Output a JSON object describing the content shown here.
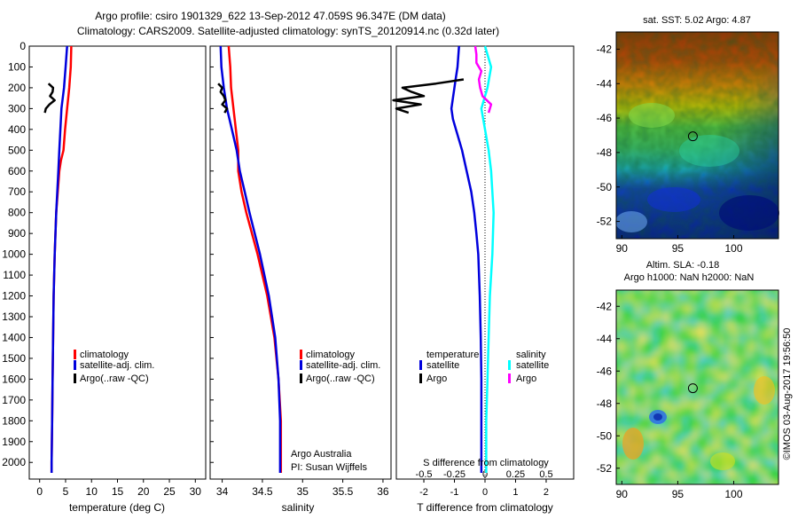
{
  "header": {
    "line1": "Argo profile: csiro 1901329_622 13-Sep-2012 47.059S 96.347E (DM data)",
    "line2": "Climatology: CARS2009. Satellite-adjusted climatology: synTS_20120914.nc (0.32d later)"
  },
  "depth_ticks": [
    "0",
    "100",
    "200",
    "300",
    "400",
    "500",
    "600",
    "700",
    "800",
    "900",
    "1000",
    "1100",
    "1200",
    "1300",
    "1400",
    "1500",
    "1600",
    "1700",
    "1800",
    "1900",
    "2000"
  ],
  "panels": {
    "temperature": {
      "xlabel": "temperature (deg C)",
      "xticks": [
        "0",
        "5",
        "10",
        "15",
        "20",
        "25",
        "30"
      ],
      "legend": [
        "climatology",
        "satellite-adj. clim.",
        "Argo(..raw -QC)"
      ]
    },
    "salinity": {
      "xlabel": "salinity",
      "xticks": [
        "34",
        "34.5",
        "35",
        "35.5",
        "36"
      ],
      "legend": [
        "climatology",
        "satellite-adj. clim.",
        "Argo(..raw -QC)"
      ],
      "note1": "Argo Australia",
      "note2": "PI: Susan Wijffels"
    },
    "difference": {
      "xlabel_top": "S difference from climatology",
      "xlabel_bottom": "T difference from climatology",
      "top_ticks": [
        "-0.5",
        "-0.25",
        "0",
        "0.25",
        "0.5"
      ],
      "bottom_ticks": [
        "-2",
        "-1",
        "0",
        "1",
        "2"
      ],
      "legend_head_t": "temperature",
      "legend_head_s": "salinity",
      "legend_t": [
        "satellite",
        "Argo"
      ],
      "legend_s": [
        "satellite",
        "Argo"
      ]
    }
  },
  "maps": {
    "sst": {
      "title": "sat. SST: 5.02 Argo: 4.87",
      "yticks": [
        "-42",
        "-44",
        "-46",
        "-48",
        "-50",
        "-52"
      ],
      "xticks": [
        "90",
        "95",
        "100"
      ]
    },
    "sla": {
      "title1": "Altim. SLA: -0.18",
      "title2": "Argo h1000: NaN h2000: NaN",
      "yticks": [
        "-42",
        "-44",
        "-46",
        "-48",
        "-50",
        "-52"
      ],
      "xticks": [
        "90",
        "95",
        "100"
      ]
    },
    "float_lon": 96.347,
    "float_lat": -47.059
  },
  "credit": "©IMOS 03-Aug-2017 19:56:50",
  "colors": {
    "climatology": "#ff0000",
    "satellite": "#0000dd",
    "argo": "#000000",
    "sat_salinity": "#00ffff",
    "argo_salinity": "#ff00ff"
  },
  "chart_data": [
    {
      "type": "line",
      "title": "",
      "xlabel": "temperature (deg C)",
      "ylabel": "",
      "xlim": [
        -2,
        32
      ],
      "ylim": [
        2080,
        0
      ],
      "series": [
        {
          "name": "climatology",
          "color": "#ff0000",
          "depth": [
            0,
            100,
            200,
            300,
            400,
            500,
            550,
            600,
            800,
            1000,
            1200,
            1400,
            1600,
            1800,
            2000,
            2050
          ],
          "values": [
            6.1,
            6.0,
            5.7,
            5.3,
            4.9,
            4.6,
            4.1,
            3.8,
            3.2,
            2.9,
            2.7,
            2.6,
            2.5,
            2.4,
            2.3,
            2.3
          ]
        },
        {
          "name": "satellite-adj. clim.",
          "color": "#0000dd",
          "depth": [
            0,
            100,
            200,
            300,
            400,
            500,
            600,
            800,
            1000,
            1200,
            1400,
            1600,
            1800,
            2000,
            2050
          ],
          "values": [
            5.3,
            5.0,
            4.7,
            4.2,
            4.0,
            3.8,
            3.6,
            3.2,
            2.9,
            2.7,
            2.6,
            2.5,
            2.4,
            2.3,
            2.3
          ]
        },
        {
          "name": "Argo(..raw -QC)",
          "color": "#000000",
          "depth": [
            180,
            200,
            220,
            240,
            260,
            280,
            300,
            320
          ],
          "values": [
            1.7,
            2.6,
            2.5,
            2.0,
            2.9,
            1.9,
            1.2,
            1.0
          ]
        }
      ]
    },
    {
      "type": "line",
      "title": "",
      "xlabel": "salinity",
      "ylabel": "",
      "xlim": [
        33.85,
        36.1
      ],
      "ylim": [
        2080,
        0
      ],
      "series": [
        {
          "name": "climatology",
          "color": "#ff0000",
          "depth": [
            0,
            100,
            200,
            300,
            400,
            500,
            600,
            700,
            800,
            1000,
            1200,
            1400,
            1600,
            1800,
            2000,
            2050
          ],
          "values": [
            34.08,
            34.1,
            34.11,
            34.14,
            34.17,
            34.2,
            34.2,
            34.24,
            34.3,
            34.44,
            34.56,
            34.65,
            34.7,
            34.73,
            34.73,
            34.73
          ]
        },
        {
          "name": "satellite-adj. clim.",
          "color": "#0000dd",
          "depth": [
            0,
            100,
            200,
            300,
            400,
            500,
            600,
            700,
            800,
            1000,
            1200,
            1400,
            1600,
            1800,
            2000,
            2050
          ],
          "values": [
            33.98,
            33.99,
            34.02,
            34.06,
            34.12,
            34.18,
            34.22,
            34.28,
            34.34,
            34.47,
            34.58,
            34.66,
            34.7,
            34.72,
            34.72,
            34.72
          ]
        },
        {
          "name": "Argo(..raw -QC)",
          "color": "#000000",
          "depth": [
            180,
            200,
            220,
            240,
            260,
            280,
            300,
            320
          ],
          "values": [
            33.95,
            34.0,
            33.98,
            34.02,
            34.04,
            34.0,
            34.06,
            34.03
          ]
        }
      ]
    },
    {
      "type": "line",
      "title": "",
      "xlabel": "T difference from climatology",
      "x2label": "S difference from climatology",
      "ylabel": "",
      "xlim": [
        -2.9,
        2.9
      ],
      "x2lim": [
        -0.725,
        0.725
      ],
      "ylim": [
        2080,
        0
      ],
      "series": [
        {
          "name": "satellite",
          "group": "temperature",
          "units": "deg C",
          "color": "#0000dd",
          "depth": [
            0,
            100,
            150,
            200,
            250,
            300,
            350,
            400,
            500,
            600,
            700,
            800,
            900,
            1000,
            1200,
            1400,
            1600,
            1800,
            2000,
            2050
          ],
          "values": [
            -0.85,
            -0.9,
            -0.95,
            -1.0,
            -1.05,
            -1.1,
            -1.05,
            -0.95,
            -0.75,
            -0.6,
            -0.45,
            -0.35,
            -0.28,
            -0.22,
            -0.17,
            -0.14,
            -0.12,
            -0.12,
            -0.12,
            -0.12
          ]
        },
        {
          "name": "Argo",
          "group": "temperature",
          "units": "deg C",
          "color": "#000000",
          "depth": [
            160,
            180,
            200,
            220,
            240,
            260,
            280,
            300,
            320
          ],
          "values": [
            -0.7,
            -1.6,
            -2.7,
            -2.4,
            -2.0,
            -3.0,
            -2.1,
            -2.9,
            -2.5
          ]
        },
        {
          "name": "satellite",
          "group": "salinity",
          "units": "psu",
          "color": "#00ffff",
          "depth": [
            0,
            100,
            200,
            300,
            400,
            500,
            600,
            800,
            1000,
            1200,
            1400,
            1600,
            1800,
            2000,
            2050
          ],
          "values": [
            0.0,
            0.05,
            0.02,
            -0.03,
            0.0,
            0.03,
            0.05,
            0.07,
            0.06,
            0.04,
            0.03,
            0.02,
            0.01,
            0.01,
            0.01
          ]
        },
        {
          "name": "Argo",
          "group": "salinity",
          "units": "psu",
          "color": "#ff00ff",
          "depth": [
            0,
            40,
            80,
            120,
            160,
            200,
            240,
            280,
            320
          ],
          "values": [
            -0.08,
            -0.07,
            -0.07,
            -0.03,
            -0.05,
            -0.04,
            -0.02,
            0.05,
            0.03
          ]
        }
      ]
    },
    {
      "type": "heatmap",
      "title": "sat. SST: 5.02 Argo: 4.87",
      "xlim": [
        89.5,
        104
      ],
      "ylim": [
        -53,
        -41
      ],
      "marker": [
        96.347,
        -47.059
      ]
    },
    {
      "type": "heatmap",
      "title": "Altim. SLA: -0.18 / Argo h1000: NaN h2000: NaN",
      "xlim": [
        89.5,
        104
      ],
      "ylim": [
        -53,
        -41
      ],
      "marker": [
        96.347,
        -47.059
      ]
    }
  ]
}
